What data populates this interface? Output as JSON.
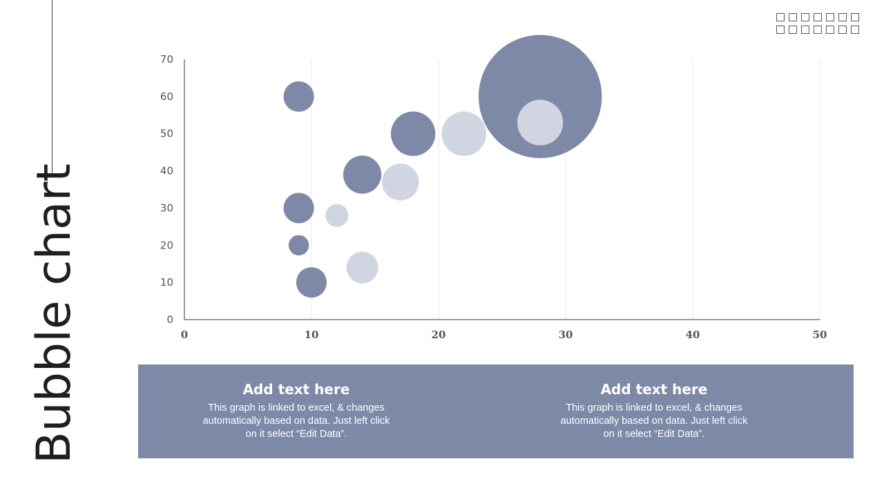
{
  "slide": {
    "title": "Bubble chart"
  },
  "chart_data": {
    "type": "scatter",
    "x_ticks": [
      "0",
      "10",
      "20",
      "30",
      "40",
      "50"
    ],
    "y_ticks": [
      "0",
      "10",
      "20",
      "30",
      "40",
      "50",
      "60",
      "70"
    ],
    "xlim": [
      0,
      50
    ],
    "ylim": [
      0,
      70
    ],
    "grid": "vertical",
    "series": [
      {
        "color": "#7d89a7",
        "points": [
          {
            "x": 9,
            "y": 60,
            "size": 2.4
          },
          {
            "x": 18,
            "y": 50,
            "size": 3.5
          },
          {
            "x": 14,
            "y": 39,
            "size": 3.0
          },
          {
            "x": 9,
            "y": 30,
            "size": 2.4
          },
          {
            "x": 9,
            "y": 20,
            "size": 1.6
          },
          {
            "x": 10,
            "y": 10,
            "size": 2.4
          },
          {
            "x": 28,
            "y": 60,
            "size": 9.7
          }
        ]
      },
      {
        "color": "#d0d5e1",
        "points": [
          {
            "x": 22,
            "y": 50,
            "size": 3.5
          },
          {
            "x": 17,
            "y": 37,
            "size": 2.9
          },
          {
            "x": 12,
            "y": 28,
            "size": 1.8
          },
          {
            "x": 14,
            "y": 14,
            "size": 2.5
          },
          {
            "x": 28,
            "y": 53,
            "size": 3.6
          }
        ]
      }
    ]
  },
  "panel": {
    "left": {
      "heading": "Add text here",
      "body": "This graph is linked to excel, & changes automatically based on data. Just left click on it select “Edit Data”."
    },
    "right": {
      "heading": "Add text here",
      "body": "This graph is linked to excel, & changes automatically based on data. Just left click on it select “Edit Data”."
    }
  }
}
